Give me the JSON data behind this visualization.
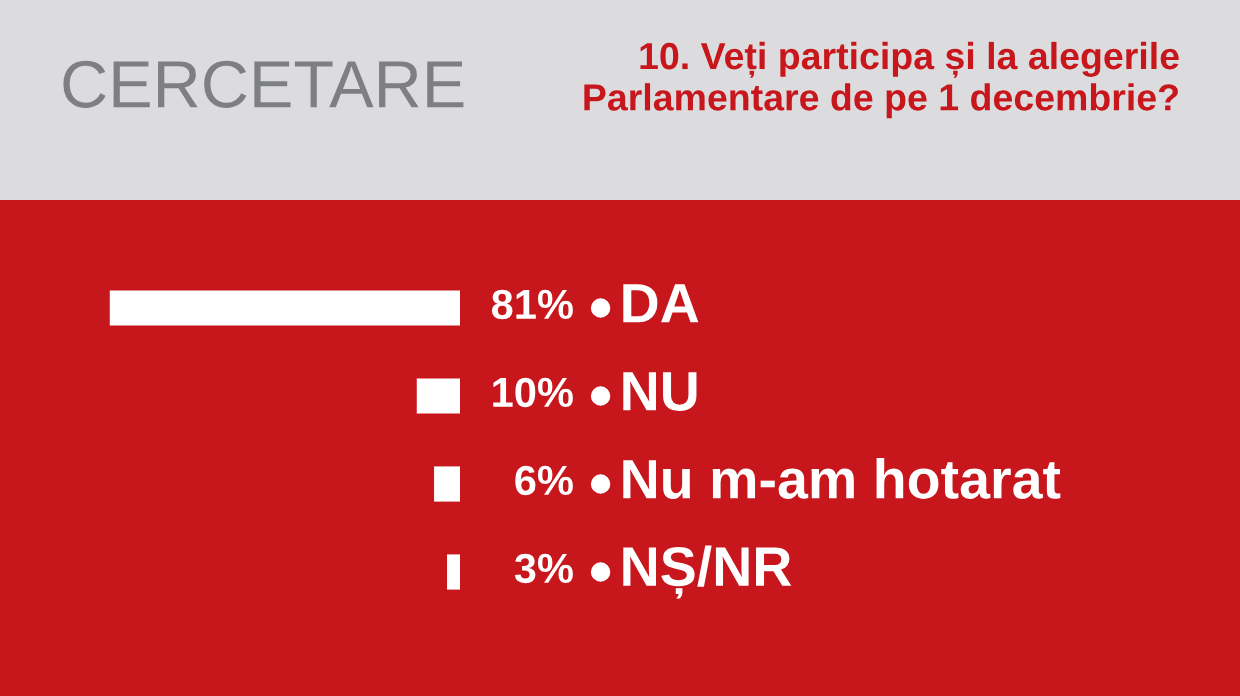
{
  "chart_data": {
    "type": "bar",
    "orientation": "horizontal",
    "title": "10. Veți participa și la alegerile\nParlamentare de pe 1 decembrie?",
    "annotations": [
      "CERCETARE"
    ],
    "categories": [
      "DA",
      "NU",
      "Nu m-am hotarat",
      "NȘ/NR"
    ],
    "values": [
      81,
      10,
      6,
      3
    ],
    "color": "#ffffff",
    "value_labels": [
      "81%",
      "10%",
      "6%",
      "3%"
    ],
    "legend": false
  }
}
